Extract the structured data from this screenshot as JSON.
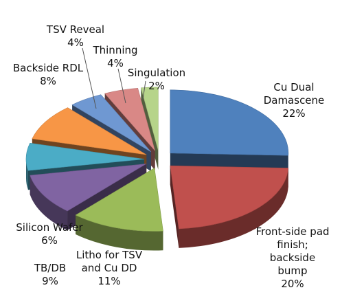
{
  "chart_data": {
    "type": "pie",
    "title": "",
    "exploded": true,
    "three_d": true,
    "slices": [
      {
        "label": "Cu Dual Damascene",
        "pct_text": "22%",
        "value": 22,
        "color": "#4f81bd"
      },
      {
        "label": "Front-side pad finish; backside bump",
        "pct_text": "20%",
        "value": 20,
        "color": "#c0504d"
      },
      {
        "label": "Litho for TSV and Cu DD",
        "pct_text": "11%",
        "value": 11,
        "color": "#9bbb59"
      },
      {
        "label": "TB/DB",
        "pct_text": "9%",
        "value": 9,
        "color": "#8064a2"
      },
      {
        "label": "Silicon Wafer",
        "pct_text": "6%",
        "value": 6,
        "color": "#4bacc6"
      },
      {
        "label": "Backside RDL",
        "pct_text": "8%",
        "value": 8,
        "color": "#f79646"
      },
      {
        "label": "TSV Reveal",
        "pct_text": "4%",
        "value": 4,
        "color": "#6f98d2"
      },
      {
        "label": "Thinning",
        "pct_text": "4%",
        "value": 4,
        "color": "#d98886"
      },
      {
        "label": "Singulation",
        "pct_text": "2%",
        "value": 2,
        "color": "#b6d48a"
      }
    ]
  },
  "labels": {
    "cu_dd_line1": "Cu Dual",
    "cu_dd_line2": "Damascene",
    "cu_dd_pct": "22%",
    "front_line1": "Front-side pad",
    "front_line2": "finish;",
    "front_line3": "backside",
    "front_line4": "bump",
    "front_pct": "20%",
    "litho_line1": "Litho for TSV",
    "litho_line2": "and Cu DD",
    "litho_pct": "11%",
    "tbdb_line1": "TB/DB",
    "tbdb_pct": "9%",
    "si_line1": "Silicon Wafer",
    "si_pct": "6%",
    "rdl_line1": "Backside RDL",
    "rdl_pct": "8%",
    "tsv_line1": "TSV Reveal",
    "tsv_pct": "4%",
    "thin_line1": "Thinning",
    "thin_pct": "4%",
    "sing_line1": "Singulation",
    "sing_pct": "2%"
  }
}
